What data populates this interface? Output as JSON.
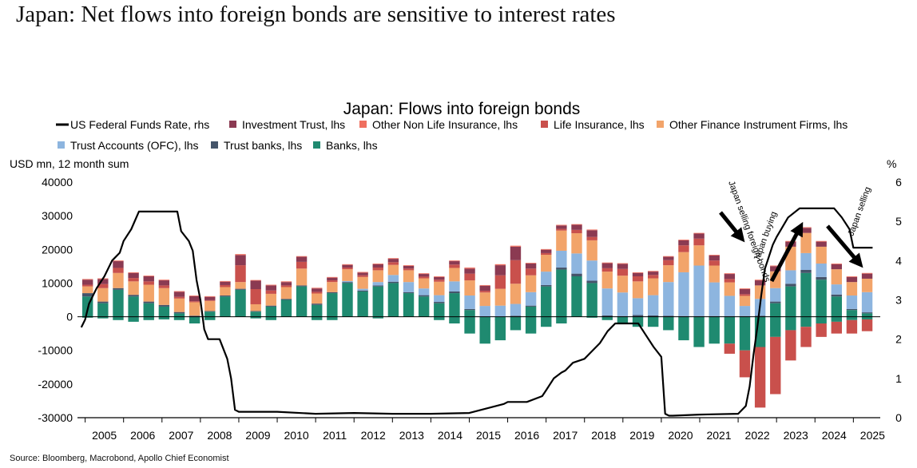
{
  "page": {
    "headline": "Japan: Net flows into foreign bonds are sensitive to interest rates",
    "source": "Source: Bloomberg, Macrobond, Apollo Chief Economist"
  },
  "chart_data": {
    "type": "bar",
    "title": "Japan: Flows into foreign bonds",
    "ylabel": "USD mn, 12 month sum",
    "y2label": "%",
    "ylim": [
      -30000,
      40000
    ],
    "y2lim": [
      0,
      6
    ],
    "yticks": [
      "40000",
      "30000",
      "20000",
      "10000",
      "0",
      "-10000",
      "-20000",
      "-30000"
    ],
    "y2ticks": [
      "6",
      "5",
      "4",
      "3",
      "2",
      "1",
      "0"
    ],
    "xticks": [
      "2005",
      "2006",
      "2007",
      "2008",
      "2009",
      "2010",
      "2011",
      "2012",
      "2013",
      "2014",
      "2015",
      "2016",
      "2017",
      "2018",
      "2019",
      "2020",
      "2021",
      "2022",
      "2023",
      "2024",
      "2025"
    ],
    "stacked": true,
    "grid": false,
    "legend_position": "top",
    "legend": [
      {
        "name": "US Federal Funds Rate, rhs",
        "color": "#000000",
        "kind": "line"
      },
      {
        "name": "Investment Trust, lhs",
        "color": "#8b3a52",
        "kind": "box"
      },
      {
        "name": "Other Non Life Insurance, lhs",
        "color": "#ef6f5f",
        "kind": "box"
      },
      {
        "name": "Life Insurance, lhs",
        "color": "#c9504c",
        "kind": "box"
      },
      {
        "name": "Other Finance Instrument Firms, lhs",
        "color": "#f2a46a",
        "kind": "box"
      },
      {
        "name": "Trust Accounts (OFC), lhs",
        "color": "#8db5df",
        "kind": "box"
      },
      {
        "name": "Trust banks, lhs",
        "color": "#44546a",
        "kind": "box"
      },
      {
        "name": "Banks, lhs",
        "color": "#1f8a70",
        "kind": "box"
      }
    ],
    "bar_series": [
      {
        "key": "banks",
        "color": "#1f8a70",
        "pos": [
          6000,
          4000,
          8000,
          6000,
          4000,
          3000,
          1000,
          0,
          1500,
          6000,
          8000,
          1500,
          3000,
          5000,
          9000,
          3500,
          7000,
          10000,
          7500,
          9000,
          10000,
          7000,
          6000,
          4000,
          7000,
          2000,
          -1000,
          -1000,
          0,
          3000,
          9000,
          14000,
          12000,
          10000,
          0,
          0,
          0,
          0,
          0,
          0,
          0,
          0,
          0,
          0,
          0,
          4000,
          9000,
          13000,
          11000,
          6000,
          2000,
          1000
        ]
      },
      {
        "key": "trust_banks",
        "color": "#44546a",
        "pos": [
          1000,
          500,
          500,
          500,
          500,
          500,
          400,
          300,
          200,
          300,
          300,
          200,
          300,
          300,
          300,
          400,
          300,
          300,
          300,
          300,
          400,
          300,
          400,
          400,
          500,
          300,
          200,
          300,
          300,
          300,
          400,
          600,
          800,
          700,
          400,
          200,
          500,
          400,
          300,
          200,
          200,
          200,
          200,
          200,
          300,
          500,
          800,
          900,
          800,
          600,
          300,
          300
        ]
      },
      {
        "key": "trust_accounts",
        "color": "#8db5df",
        "pos": [
          0,
          0,
          0,
          0,
          0,
          0,
          0,
          0,
          0,
          0,
          0,
          0,
          0,
          0,
          0,
          0,
          0,
          300,
          500,
          1000,
          2000,
          3000,
          2000,
          2000,
          3000,
          4000,
          4000,
          4000,
          3500,
          4000,
          4000,
          5000,
          6000,
          6000,
          8000,
          7000,
          5000,
          6000,
          10000,
          13000,
          15000,
          10000,
          6000,
          3000,
          5000,
          4000,
          4000,
          5000,
          4000,
          3000,
          4000,
          6000
        ]
      },
      {
        "key": "other_finance",
        "color": "#f2a46a",
        "pos": [
          2000,
          4000,
          4500,
          4000,
          5000,
          5000,
          4000,
          4000,
          3000,
          2500,
          2000,
          2000,
          3500,
          3500,
          5000,
          3000,
          3000,
          3500,
          3500,
          3500,
          3000,
          3500,
          3000,
          4000,
          4000,
          4500,
          4000,
          5000,
          6000,
          5000,
          5000,
          6000,
          6000,
          6000,
          5000,
          5000,
          5000,
          5000,
          5000,
          6000,
          6000,
          5000,
          4000,
          3000,
          4000,
          5000,
          7000,
          6000,
          5000,
          4500,
          4000,
          4000
        ]
      },
      {
        "key": "life_insurance",
        "color": "#c9504c",
        "pos": [
          500,
          1200,
          1500,
          1000,
          1000,
          800,
          500,
          300,
          200,
          600,
          5000,
          4500,
          1000,
          500,
          2000,
          500,
          500,
          500,
          500,
          800,
          800,
          500,
          500,
          600,
          1000,
          2000,
          500,
          4000,
          7000,
          2000,
          500,
          500,
          1000,
          1000,
          1000,
          2000,
          1500,
          1000,
          1500,
          2000,
          2000,
          1500,
          1000,
          500,
          0,
          0,
          0,
          0,
          0,
          0,
          0,
          0
        ]
      },
      {
        "key": "investment_trust",
        "color": "#8b3a52",
        "pos": [
          1500,
          1500,
          2000,
          1500,
          1500,
          1500,
          1500,
          1500,
          1000,
          1000,
          3000,
          2500,
          1500,
          1000,
          1500,
          1000,
          800,
          800,
          800,
          1000,
          1000,
          800,
          800,
          800,
          1000,
          1500,
          1500,
          3000,
          4000,
          1500,
          1000,
          1000,
          1500,
          2000,
          1500,
          1500,
          1000,
          1000,
          1000,
          1500,
          1500,
          1500,
          1500,
          1500,
          1500,
          1500,
          1500,
          1500,
          1500,
          1500,
          1500,
          1500
        ]
      },
      {
        "key": "other_nonlife",
        "color": "#ef6f5f",
        "pos": [
          200,
          200,
          200,
          200,
          200,
          200,
          200,
          200,
          200,
          200,
          300,
          200,
          200,
          200,
          200,
          200,
          200,
          200,
          200,
          200,
          200,
          200,
          200,
          200,
          200,
          300,
          200,
          300,
          300,
          200,
          200,
          200,
          200,
          200,
          200,
          200,
          200,
          200,
          200,
          200,
          200,
          200,
          200,
          200,
          200,
          200,
          200,
          200,
          200,
          200,
          200,
          200
        ]
      }
    ],
    "negative_series": [
      {
        "key": "banks",
        "color": "#1f8a70",
        "neg": [
          -300,
          -500,
          -1000,
          -1500,
          -1000,
          -800,
          -1000,
          -2000,
          -1000,
          0,
          0,
          -500,
          -1000,
          0,
          0,
          -1000,
          -1000,
          0,
          0,
          -500,
          0,
          0,
          0,
          -1000,
          -2000,
          -5000,
          -8000,
          -7000,
          -4000,
          -5000,
          -3000,
          -2000,
          0,
          -300,
          -1000,
          -2000,
          -3000,
          -3000,
          -4000,
          -7000,
          -9000,
          -8000,
          -8000,
          -10000,
          -9000,
          -6000,
          -4000,
          -3000,
          -2000,
          -1500,
          -1000,
          -800
        ]
      },
      {
        "key": "life_insurance",
        "color": "#c9504c",
        "neg": [
          0,
          0,
          0,
          0,
          0,
          0,
          0,
          0,
          0,
          0,
          0,
          0,
          0,
          0,
          0,
          0,
          0,
          0,
          0,
          0,
          0,
          0,
          0,
          0,
          0,
          0,
          0,
          0,
          0,
          0,
          0,
          0,
          0,
          0,
          0,
          0,
          0,
          0,
          0,
          0,
          0,
          0,
          -3000,
          -8000,
          -18000,
          -17000,
          -9000,
          -6000,
          -4000,
          -3500,
          -4000,
          -3500
        ]
      }
    ],
    "rate_series": {
      "name": "US Federal Funds Rate",
      "x": [
        2004.9,
        2005.0,
        2005.1,
        2005.3,
        2005.5,
        2005.7,
        2005.9,
        2006.0,
        2006.2,
        2006.4,
        2006.6,
        2006.8,
        2007.0,
        2007.2,
        2007.4,
        2007.5,
        2007.7,
        2007.8,
        2007.9,
        2008.0,
        2008.1,
        2008.2,
        2008.3,
        2008.5,
        2008.7,
        2008.8,
        2008.9,
        2009.0,
        2009.5,
        2010.0,
        2011.0,
        2012.0,
        2013.0,
        2014.0,
        2015.0,
        2015.9,
        2016.0,
        2016.5,
        2016.9,
        2017.0,
        2017.2,
        2017.4,
        2017.5,
        2017.7,
        2018.0,
        2018.2,
        2018.4,
        2018.6,
        2018.8,
        2018.9,
        2019.0,
        2019.4,
        2019.6,
        2019.8,
        2020.0,
        2020.1,
        2020.2,
        2020.3,
        2021.0,
        2022.0,
        2022.2,
        2022.3,
        2022.4,
        2022.5,
        2022.6,
        2022.7,
        2022.8,
        2022.9,
        2023.0,
        2023.3,
        2023.6,
        2024.5,
        2024.7,
        2024.9,
        2025.0,
        2025.5
      ],
      "y": [
        2.3,
        2.5,
        2.9,
        3.3,
        3.6,
        4.0,
        4.2,
        4.5,
        4.8,
        5.25,
        5.25,
        5.25,
        5.25,
        5.25,
        5.25,
        4.75,
        4.5,
        4.25,
        3.5,
        3.0,
        2.25,
        2.0,
        2.0,
        2.0,
        1.5,
        1.0,
        0.2,
        0.15,
        0.15,
        0.15,
        0.1,
        0.12,
        0.1,
        0.1,
        0.12,
        0.35,
        0.4,
        0.4,
        0.55,
        0.7,
        1.0,
        1.15,
        1.2,
        1.4,
        1.5,
        1.7,
        1.9,
        2.2,
        2.4,
        2.4,
        2.4,
        2.4,
        2.1,
        1.8,
        1.55,
        0.1,
        0.05,
        0.05,
        0.08,
        0.1,
        0.3,
        0.8,
        1.6,
        2.3,
        3.1,
        3.8,
        4.1,
        4.4,
        4.6,
        5.1,
        5.33,
        5.33,
        5.1,
        4.8,
        4.33,
        4.33
      ]
    },
    "annotations": [
      {
        "text": "Japan selling foreign bonds",
        "rotate": 70
      },
      {
        "text": "Japan buying",
        "rotate": -70
      },
      {
        "text": "Japan selling",
        "rotate": -70
      }
    ]
  }
}
